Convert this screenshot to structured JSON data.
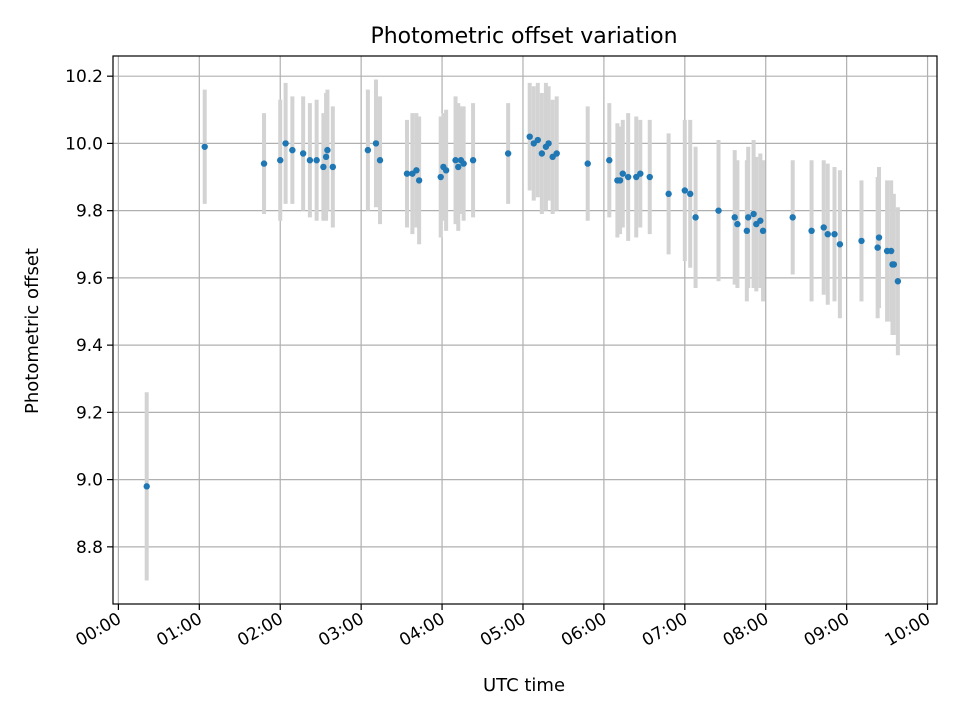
{
  "chart_data": {
    "type": "scatter",
    "title": "Photometric offset variation",
    "xlabel": "UTC time",
    "ylabel": "Photometric offset",
    "xlim": [
      "23:56",
      "10:07"
    ],
    "ylim": [
      8.63,
      10.26
    ],
    "x_ticks": [
      "00:00",
      "01:00",
      "02:00",
      "03:00",
      "04:00",
      "05:00",
      "06:00",
      "07:00",
      "08:00",
      "09:00",
      "10:00"
    ],
    "y_ticks": [
      8.8,
      9.0,
      9.2,
      9.4,
      9.6,
      9.8,
      10.0,
      10.2
    ],
    "grid": true,
    "colors": {
      "point": "#1f77b4",
      "errorbar": "#d3d3d3",
      "grid": "#b0b0b0"
    },
    "series": [
      {
        "x": [
          "00:21",
          "01:04",
          "01:48",
          "02:00",
          "02:04",
          "02:09",
          "02:17",
          "02:22",
          "02:27",
          "02:32",
          "02:34",
          "02:35",
          "02:39",
          "03:05",
          "03:11",
          "03:14",
          "03:34",
          "03:38",
          "03:41",
          "03:43",
          "03:59",
          "04:01",
          "04:03",
          "04:10",
          "04:12",
          "04:14",
          "04:16",
          "04:23",
          "04:49",
          "05:05",
          "05:08",
          "05:11",
          "05:14",
          "05:17",
          "05:19",
          "05:22",
          "05:25",
          "05:48",
          "06:04",
          "06:10",
          "06:12",
          "06:14",
          "06:18",
          "06:24",
          "06:27",
          "06:34",
          "06:48",
          "07:00",
          "07:04",
          "07:08",
          "07:25",
          "07:37",
          "07:39",
          "07:46",
          "07:47",
          "07:51",
          "07:53",
          "07:56",
          "07:58",
          "08:20",
          "08:34",
          "08:43",
          "08:46",
          "08:51",
          "08:55",
          "09:11",
          "09:23",
          "09:24",
          "09:30",
          "09:33",
          "09:34",
          "09:35",
          "09:38"
        ],
        "y": [
          8.98,
          9.99,
          9.94,
          9.95,
          10.0,
          9.98,
          9.97,
          9.95,
          9.95,
          9.93,
          9.96,
          9.98,
          9.93,
          9.98,
          10.0,
          9.95,
          9.91,
          9.91,
          9.92,
          9.89,
          9.9,
          9.93,
          9.92,
          9.95,
          9.93,
          9.95,
          9.94,
          9.95,
          9.97,
          10.02,
          10.0,
          10.01,
          9.97,
          9.99,
          10.0,
          9.96,
          9.97,
          9.94,
          9.95,
          9.89,
          9.89,
          9.91,
          9.9,
          9.9,
          9.91,
          9.9,
          9.85,
          9.86,
          9.85,
          9.78,
          9.8,
          9.78,
          9.76,
          9.74,
          9.78,
          9.79,
          9.76,
          9.77,
          9.74,
          9.78,
          9.74,
          9.75,
          9.73,
          9.73,
          9.7,
          9.71,
          9.69,
          9.72,
          9.68,
          9.68,
          9.64,
          9.64,
          9.59
        ],
        "yerr": [
          0.28,
          0.17,
          0.15,
          0.18,
          0.18,
          0.16,
          0.17,
          0.17,
          0.18,
          0.16,
          0.19,
          0.18,
          0.18,
          0.18,
          0.19,
          0.19,
          0.16,
          0.18,
          0.17,
          0.19,
          0.18,
          0.16,
          0.18,
          0.19,
          0.19,
          0.16,
          0.17,
          0.17,
          0.15,
          0.16,
          0.17,
          0.17,
          0.18,
          0.19,
          0.17,
          0.17,
          0.17,
          0.17,
          0.17,
          0.17,
          0.16,
          0.16,
          0.19,
          0.18,
          0.16,
          0.17,
          0.18,
          0.21,
          0.22,
          0.21,
          0.21,
          0.2,
          0.19,
          0.21,
          0.21,
          0.22,
          0.2,
          0.2,
          0.21,
          0.17,
          0.21,
          0.2,
          0.21,
          0.2,
          0.22,
          0.18,
          0.21,
          0.21,
          0.21,
          0.21,
          0.21,
          0.21,
          0.22
        ]
      }
    ]
  }
}
